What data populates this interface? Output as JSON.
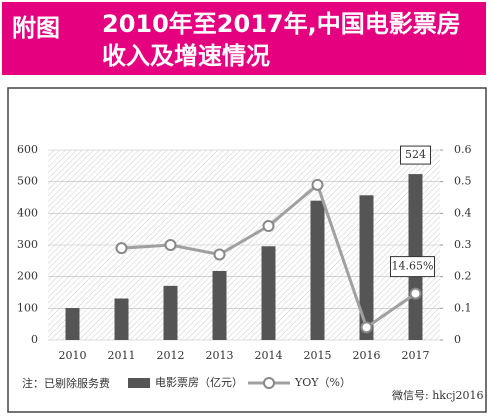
{
  "header": {
    "tag": "附图",
    "title": "2010年至2017年,中国电影票房收入及增速情况"
  },
  "chart_data": {
    "type": "bar",
    "categories": [
      "2010",
      "2011",
      "2012",
      "2013",
      "2014",
      "2015",
      "2016",
      "2017"
    ],
    "series": [
      {
        "name": "电影票房（亿元）",
        "color": "#555555",
        "values": [
          101,
          131,
          171,
          218,
          296,
          440,
          457,
          524
        ]
      },
      {
        "name": "YOY（%）",
        "color": "#a0a0a0",
        "type": "line",
        "axis": "y2",
        "values": [
          null,
          0.29,
          0.3,
          0.27,
          0.36,
          0.49,
          0.04,
          0.1465
        ],
        "value_labels": [
          null,
          null,
          null,
          null,
          null,
          null,
          null,
          "14.65%"
        ]
      }
    ],
    "ylim": [
      0,
      600
    ],
    "yticks": [
      0,
      100,
      200,
      300,
      400,
      500,
      600
    ],
    "y2lim": [
      0,
      0.6
    ],
    "y2ticks": [
      0,
      0.1,
      0.2,
      0.3,
      0.4,
      0.5,
      0.6
    ],
    "grid": true,
    "annotations": [
      "注：已剔除服务费",
      "微信号: hkcj2016"
    ]
  }
}
